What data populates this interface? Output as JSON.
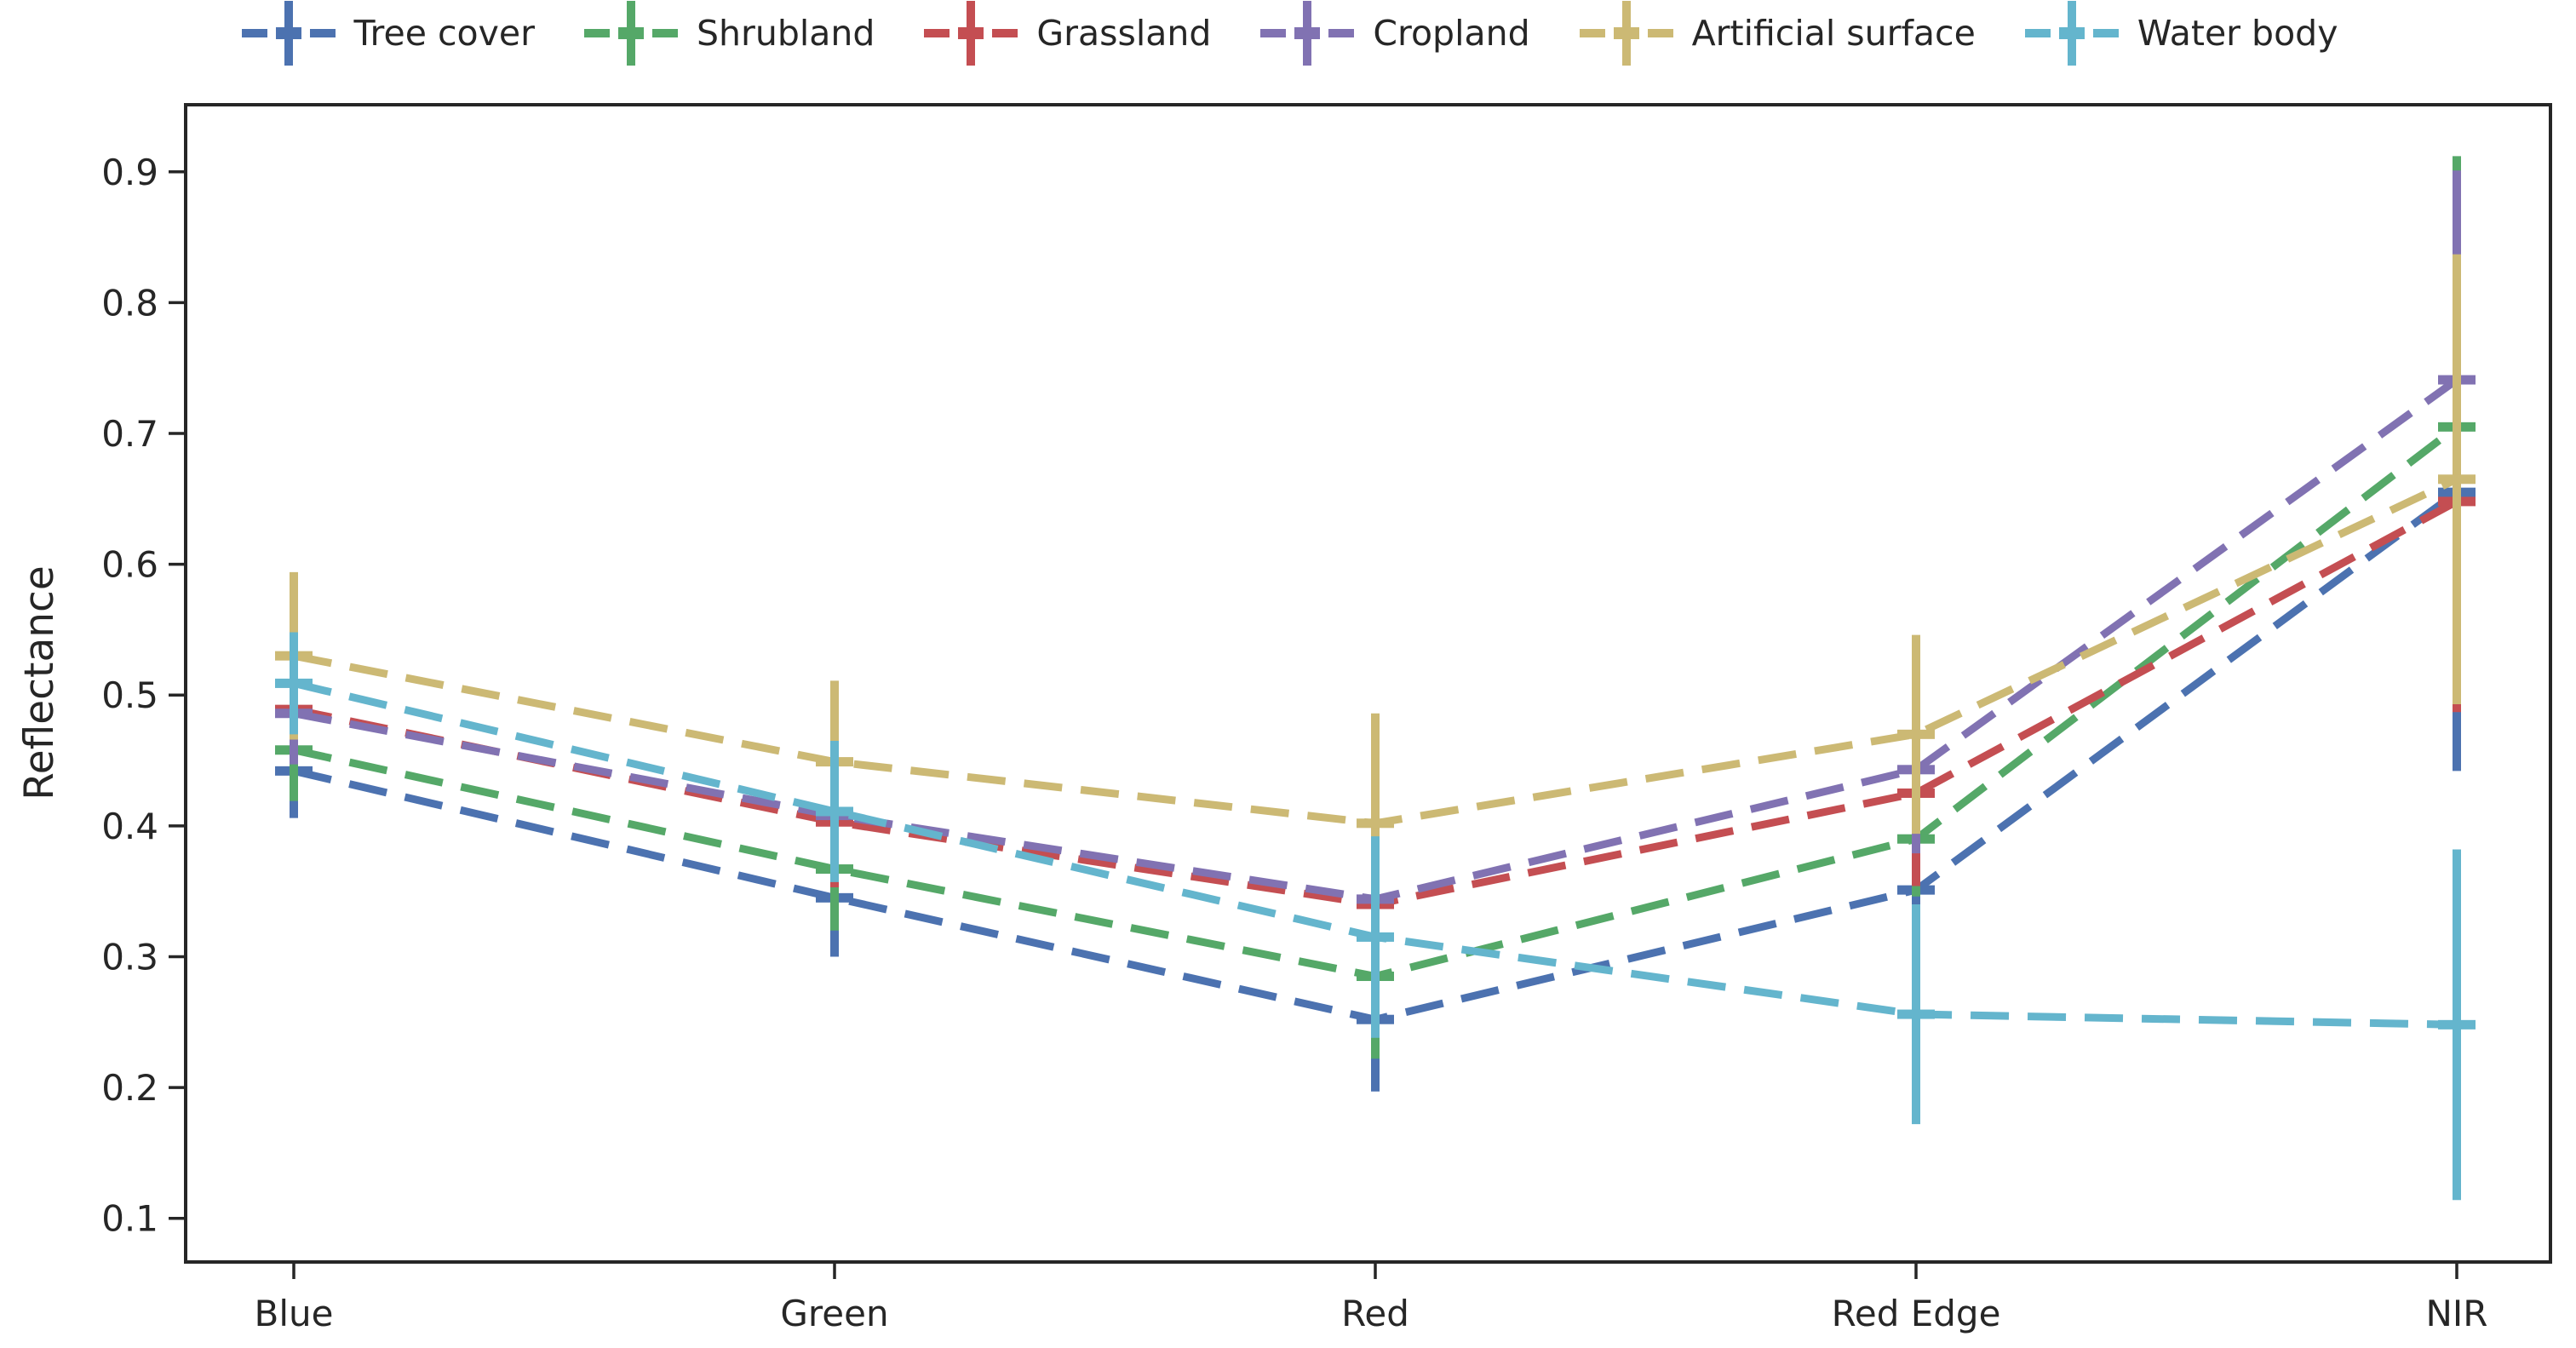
{
  "chart_data": {
    "type": "line",
    "style": "dashed lines with symmetric vertical error bars",
    "title": "",
    "xlabel": "",
    "ylabel": "Reflectance",
    "categories": [
      "Blue",
      "Green",
      "Red",
      "Red Edge",
      "NIR"
    ],
    "yticks": [
      0.1,
      0.2,
      0.3,
      0.4,
      0.5,
      0.6,
      0.7,
      0.8,
      0.9
    ],
    "ylim": [
      0.0666,
      0.9513
    ],
    "grid": false,
    "legend_position": "top",
    "text_color": "#262626",
    "axis_color": "#262626",
    "background_color": "#ffffff",
    "series": [
      {
        "name": "Tree cover",
        "color": "#4C72B0",
        "values": [
          0.442,
          0.345,
          0.252,
          0.351,
          0.655
        ],
        "errors": [
          0.036,
          0.045,
          0.055,
          0.05,
          0.213
        ]
      },
      {
        "name": "Shrubland",
        "color": "#55A868",
        "values": [
          0.458,
          0.367,
          0.285,
          0.39,
          0.705
        ],
        "errors": [
          0.039,
          0.047,
          0.063,
          0.044,
          0.207
        ]
      },
      {
        "name": "Grassland",
        "color": "#C44E52",
        "values": [
          0.489,
          0.403,
          0.34,
          0.425,
          0.648
        ],
        "errors": [
          0.04,
          0.05,
          0.06,
          0.071,
          0.161
        ]
      },
      {
        "name": "Cropland",
        "color": "#8172B2",
        "values": [
          0.486,
          0.408,
          0.344,
          0.443,
          0.741
        ],
        "errors": [
          0.039,
          0.05,
          0.06,
          0.064,
          0.16
        ]
      },
      {
        "name": "Artificial surface",
        "color": "#CCB974",
        "values": [
          0.53,
          0.449,
          0.402,
          0.47,
          0.665
        ],
        "errors": [
          0.064,
          0.062,
          0.084,
          0.076,
          0.172
        ]
      },
      {
        "name": "Water body",
        "color": "#64B5CD",
        "values": [
          0.509,
          0.411,
          0.315,
          0.256,
          0.248
        ],
        "errors": [
          0.039,
          0.054,
          0.077,
          0.084,
          0.134
        ]
      }
    ]
  }
}
